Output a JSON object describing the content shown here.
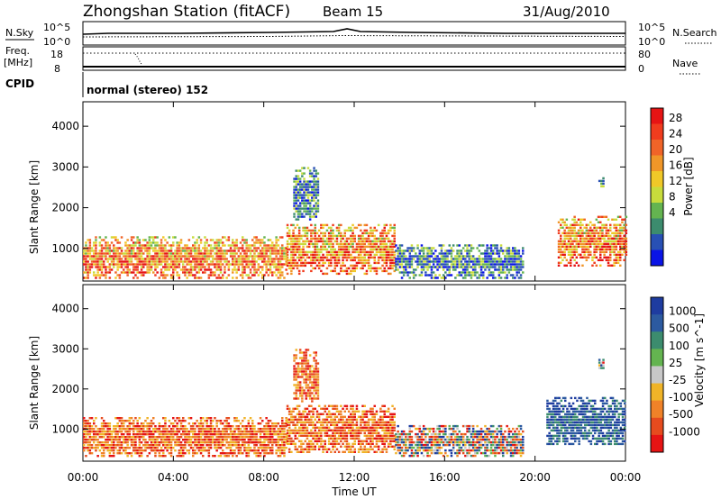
{
  "header": {
    "station": "Zhongshan Station (fitACF)",
    "beam": "Beam 15",
    "date": "31/Aug/2010"
  },
  "strip": {
    "nsky_label": "N.Sky",
    "nsearch_label": "N.Search",
    "nsky_ticks": [
      "10^5",
      "10^0"
    ],
    "nsearch_ticks": [
      "10^5",
      "10^0"
    ],
    "freq_label": "Freq.",
    "freq_unit": "[MHz]",
    "freq_ticks": [
      "18",
      "8"
    ],
    "nave_label": "Nave",
    "nave_ticks": [
      "80",
      "0"
    ],
    "cpid_label": "CPID",
    "cpid_value": "normal (stereo) 152"
  },
  "chart_data": [
    {
      "type": "heatmap",
      "title": "",
      "ylabel": "Slant Range [km]",
      "yticks": [
        "1000",
        "2000",
        "3000",
        "4000"
      ],
      "ylim": [
        200,
        4600
      ],
      "colorbar_label": "Power [dB]",
      "colorbar_ticks": [
        "4",
        "8",
        "12",
        "16",
        "20",
        "24",
        "28"
      ],
      "colors": [
        "#0a14e6",
        "#2850b4",
        "#3c8c6e",
        "#64b450",
        "#c8dc3c",
        "#f0c828",
        "#f09628",
        "#f06428",
        "#f03c1e",
        "#e61414"
      ],
      "echo_regions": [
        {
          "x_start_h": 0.0,
          "x_end_h": 9.0,
          "r_low_km": 300,
          "r_high_km": 1300,
          "level": "high"
        },
        {
          "x_start_h": 9.3,
          "x_end_h": 10.4,
          "r_low_km": 1700,
          "r_high_km": 3000,
          "level": "low"
        },
        {
          "x_start_h": 9.0,
          "x_end_h": 13.8,
          "r_low_km": 400,
          "r_high_km": 1600,
          "level": "high"
        },
        {
          "x_start_h": 13.8,
          "x_end_h": 19.5,
          "r_low_km": 300,
          "r_high_km": 1100,
          "level": "low"
        },
        {
          "x_start_h": 21.0,
          "x_end_h": 24.0,
          "r_low_km": 600,
          "r_high_km": 1800,
          "level": "high"
        },
        {
          "x_start_h": 22.8,
          "x_end_h": 23.0,
          "r_low_km": 2500,
          "r_high_km": 2750,
          "level": "low"
        }
      ]
    },
    {
      "type": "heatmap",
      "title": "",
      "ylabel": "Slant Range [km]",
      "yticks": [
        "1000",
        "2000",
        "3000",
        "4000"
      ],
      "ylim": [
        200,
        4600
      ],
      "xlabel": "Time UT",
      "xticks": [
        "00:00",
        "04:00",
        "08:00",
        "12:00",
        "16:00",
        "20:00",
        "00:00"
      ],
      "xlim": [
        0,
        24
      ],
      "colorbar_label": "Velocity [m s^-1]",
      "colorbar_ticks": [
        "1000",
        "500",
        "100",
        "25",
        "-25",
        "-100",
        "-500",
        "-1000"
      ],
      "colors": [
        "#1e3ca0",
        "#2c5aa0",
        "#3c8c6e",
        "#64b450",
        "#c8c8c8",
        "#f0b428",
        "#f08228",
        "#e64b1e",
        "#e61414"
      ],
      "echo_regions": [
        {
          "x_start_h": 0.0,
          "x_end_h": 9.0,
          "r_low_km": 300,
          "r_high_km": 1300,
          "level": "negative"
        },
        {
          "x_start_h": 9.3,
          "x_end_h": 10.4,
          "r_low_km": 1700,
          "r_high_km": 3000,
          "level": "negative"
        },
        {
          "x_start_h": 9.0,
          "x_end_h": 13.8,
          "r_low_km": 400,
          "r_high_km": 1600,
          "level": "negative"
        },
        {
          "x_start_h": 13.8,
          "x_end_h": 19.5,
          "r_low_km": 300,
          "r_high_km": 1100,
          "level": "mixed"
        },
        {
          "x_start_h": 20.5,
          "x_end_h": 24.0,
          "r_low_km": 600,
          "r_high_km": 1800,
          "level": "positive"
        },
        {
          "x_start_h": 22.8,
          "x_end_h": 23.0,
          "r_low_km": 2500,
          "r_high_km": 2750,
          "level": "mixed"
        }
      ]
    }
  ]
}
